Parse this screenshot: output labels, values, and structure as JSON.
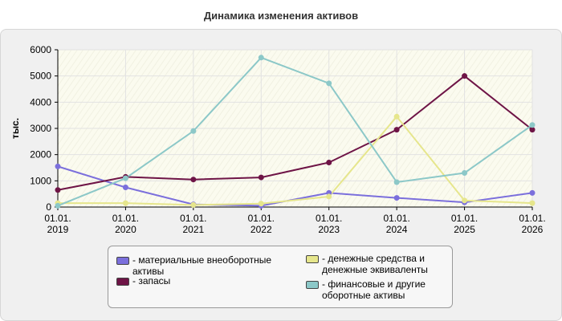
{
  "chart_data": {
    "type": "line",
    "title": "Динамика изменения активов",
    "ylabel": "тыс.",
    "ylim": [
      0,
      6000
    ],
    "yticks": [
      "0",
      "1000",
      "2000",
      "3000",
      "4000",
      "5000",
      "6000"
    ],
    "x_labels": [
      [
        "01.01.",
        "2019"
      ],
      [
        "01.01.",
        "2020"
      ],
      [
        "01.01.",
        "2021"
      ],
      [
        "01.01.",
        "2022"
      ],
      [
        "01.01.",
        "2023"
      ],
      [
        "01.01.",
        "2024"
      ],
      [
        "01.01.",
        "2025"
      ],
      [
        "01.01.",
        "2026"
      ]
    ],
    "legend_position": "bottom",
    "series": [
      {
        "name": "- материальные внеоборотные активы",
        "color": "#7b6fdc",
        "values": [
          1550,
          750,
          100,
          50,
          540,
          350,
          180,
          540
        ]
      },
      {
        "name": "- запасы",
        "color": "#6e1446",
        "values": [
          650,
          1150,
          1050,
          1130,
          1700,
          2950,
          5000,
          2950
        ]
      },
      {
        "name": "- денежные средства и денежные эквиваленты",
        "color": "#e6e68c",
        "values": [
          150,
          150,
          80,
          130,
          400,
          3450,
          250,
          150
        ]
      },
      {
        "name": "- финансовые и другие оборотные активы",
        "color": "#8cc8c8",
        "values": [
          50,
          1100,
          2900,
          5700,
          4720,
          950,
          1300,
          3130
        ]
      }
    ]
  }
}
